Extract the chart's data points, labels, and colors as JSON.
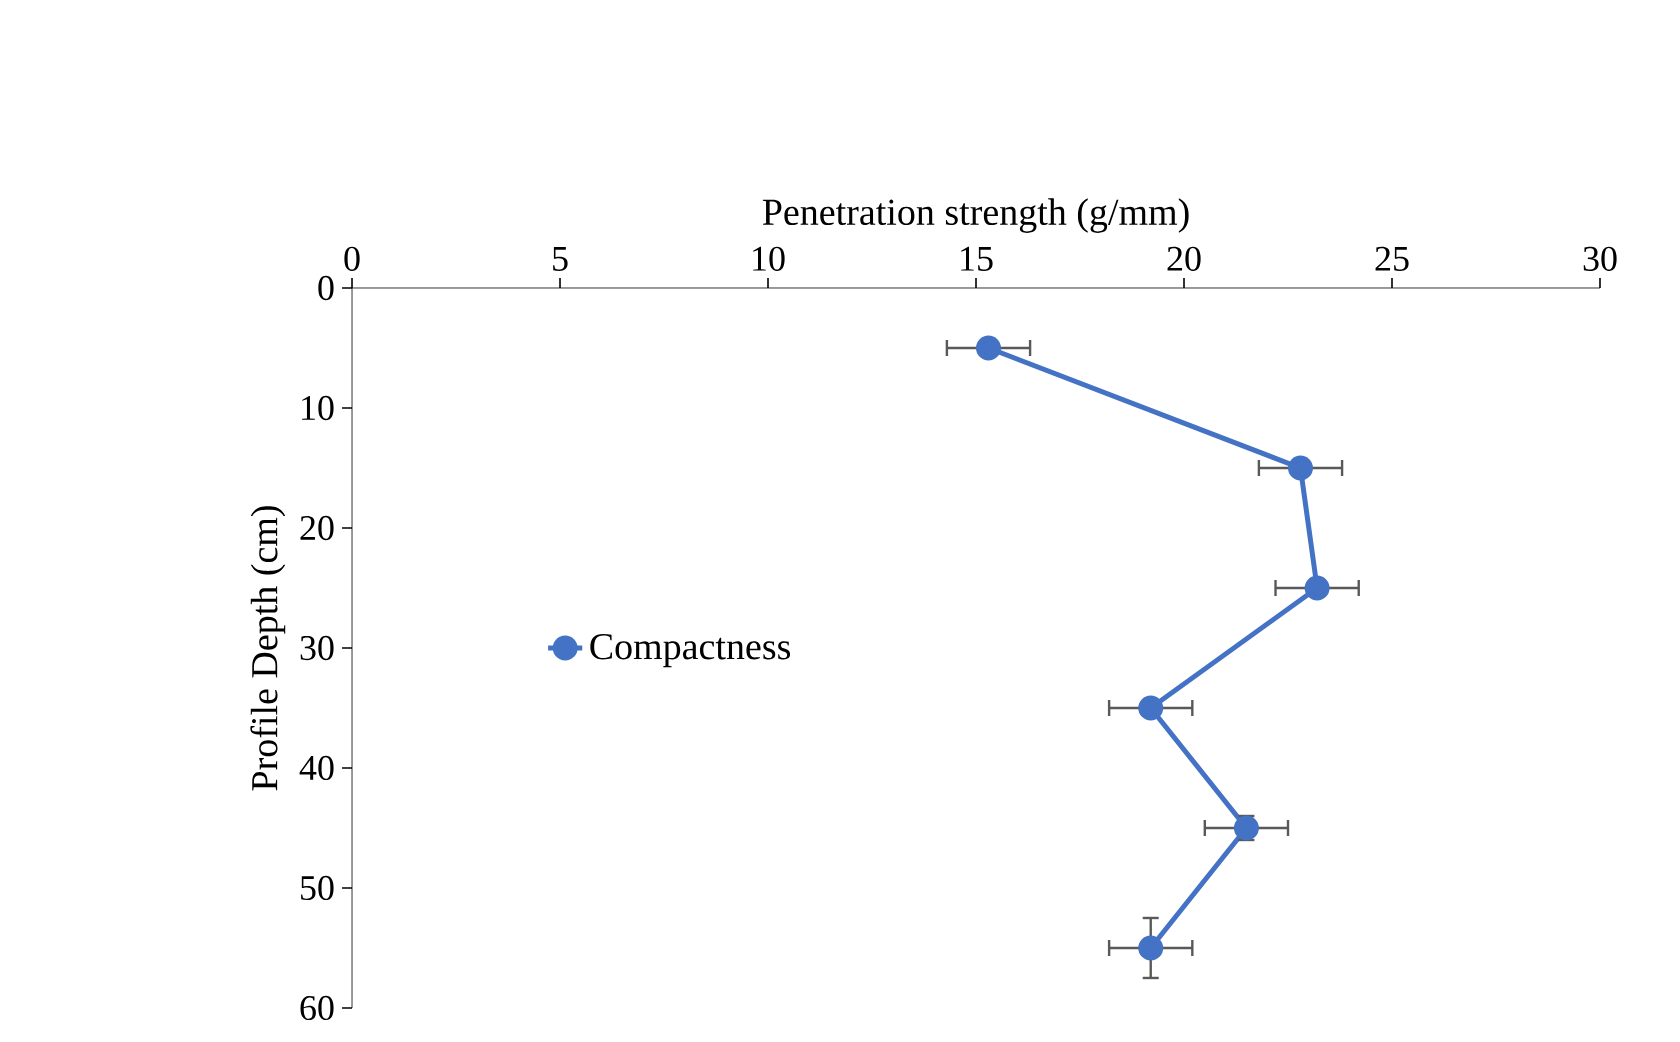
{
  "chart_data": {
    "type": "line",
    "xlabel": "Penetration strength (g/mm)",
    "ylabel": "Profile Depth (cm)",
    "series": [
      {
        "name": "Compactness",
        "color": "#4472c4",
        "x": [
          15.3,
          22.8,
          23.2,
          19.2,
          21.5,
          19.2
        ],
        "values": [
          5,
          15,
          25,
          35,
          45,
          55
        ],
        "xerrors": [
          1.0,
          1.0,
          1.0,
          1.0,
          1.0,
          1.0
        ],
        "errors": [
          null,
          null,
          null,
          null,
          1,
          2.5
        ]
      }
    ],
    "xlim": [
      0,
      30
    ],
    "xticks": [
      0,
      5,
      10,
      15,
      20,
      25,
      30
    ],
    "ylim": [
      60,
      0
    ],
    "yticks": [
      0,
      10,
      20,
      30,
      40,
      50,
      60
    ],
    "marker": "circle",
    "line_style": "solid",
    "legend": "left",
    "grid": false
  }
}
